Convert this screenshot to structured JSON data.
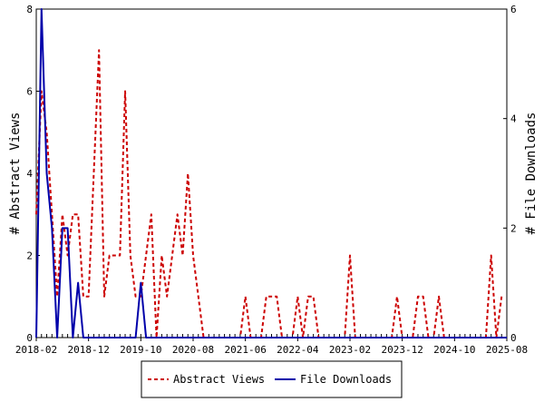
{
  "chart_data": {
    "type": "line",
    "xlabel": "",
    "ylabel_left": "# Abstract Views",
    "ylabel_right": "# File Downloads",
    "ylim_left": [
      0,
      8
    ],
    "ylim_right": [
      0,
      6
    ],
    "yticks_left": [
      "0",
      "2",
      "4",
      "6",
      "8"
    ],
    "yticks_right": [
      "0",
      "2",
      "4",
      "6"
    ],
    "xlim": [
      "2018-02",
      "2025-08"
    ],
    "xticks": [
      "2018-02",
      "2018-12",
      "2019-10",
      "2020-08",
      "2021-06",
      "2022-04",
      "2023-02",
      "2023-12",
      "2024-10",
      "2025-08"
    ],
    "legend_position": "bottom-center",
    "series": [
      {
        "name": "Abstract Views",
        "axis": "left",
        "color": "#cc0000",
        "dash": "dashed",
        "points": [
          [
            "2018-02",
            3.0
          ],
          [
            "2018-03",
            6.0
          ],
          [
            "2018-04",
            5.0
          ],
          [
            "2018-05",
            3.0
          ],
          [
            "2018-06",
            1.0
          ],
          [
            "2018-07",
            3.0
          ],
          [
            "2018-08",
            2.0
          ],
          [
            "2018-09",
            3.0
          ],
          [
            "2018-10",
            3.0
          ],
          [
            "2018-11",
            1.0
          ],
          [
            "2018-12",
            1.0
          ],
          [
            "2019-01",
            4.0
          ],
          [
            "2019-02",
            7.0
          ],
          [
            "2019-03",
            1.0
          ],
          [
            "2019-04",
            2.0
          ],
          [
            "2019-05",
            2.0
          ],
          [
            "2019-06",
            2.0
          ],
          [
            "2019-07",
            6.0
          ],
          [
            "2019-08",
            2.0
          ],
          [
            "2019-09",
            1.0
          ],
          [
            "2019-10",
            1.0
          ],
          [
            "2019-11",
            2.0
          ],
          [
            "2019-12",
            3.0
          ],
          [
            "2020-01",
            0.0
          ],
          [
            "2020-02",
            2.0
          ],
          [
            "2020-03",
            1.0
          ],
          [
            "2020-04",
            2.0
          ],
          [
            "2020-05",
            3.0
          ],
          [
            "2020-06",
            2.0
          ],
          [
            "2020-07",
            4.0
          ],
          [
            "2020-08",
            2.0
          ],
          [
            "2020-09",
            1.0
          ],
          [
            "2020-10",
            0.0
          ],
          [
            "2021-05",
            0.0
          ],
          [
            "2021-06",
            1.0
          ],
          [
            "2021-07",
            0.0
          ],
          [
            "2021-09",
            0.0
          ],
          [
            "2021-10",
            1.0
          ],
          [
            "2021-12",
            1.0
          ],
          [
            "2022-01",
            0.0
          ],
          [
            "2022-03",
            0.0
          ],
          [
            "2022-04",
            1.0
          ],
          [
            "2022-05",
            0.0
          ],
          [
            "2022-06",
            1.0
          ],
          [
            "2022-07",
            1.0
          ],
          [
            "2022-08",
            0.0
          ],
          [
            "2023-01",
            0.0
          ],
          [
            "2023-02",
            2.0
          ],
          [
            "2023-03",
            0.0
          ],
          [
            "2023-10",
            0.0
          ],
          [
            "2023-11",
            1.0
          ],
          [
            "2023-12",
            0.0
          ],
          [
            "2024-02",
            0.0
          ],
          [
            "2024-03",
            1.0
          ],
          [
            "2024-04",
            1.0
          ],
          [
            "2024-05",
            0.0
          ],
          [
            "2024-06",
            0.0
          ],
          [
            "2024-07",
            1.0
          ],
          [
            "2024-08",
            0.0
          ],
          [
            "2025-04",
            0.0
          ],
          [
            "2025-05",
            2.0
          ],
          [
            "2025-06",
            0.0
          ],
          [
            "2025-07",
            1.0
          ]
        ]
      },
      {
        "name": "File Downloads",
        "axis": "right",
        "color": "#0000aa",
        "dash": "solid",
        "points": [
          [
            "2018-02",
            0.0
          ],
          [
            "2018-03",
            6.0
          ],
          [
            "2018-04",
            3.0
          ],
          [
            "2018-05",
            2.0
          ],
          [
            "2018-06",
            0.0
          ],
          [
            "2018-07",
            2.0
          ],
          [
            "2018-08",
            2.0
          ],
          [
            "2018-09",
            0.0
          ],
          [
            "2018-10",
            1.0
          ],
          [
            "2018-11",
            0.0
          ],
          [
            "2019-09",
            0.0
          ],
          [
            "2019-10",
            1.0
          ],
          [
            "2019-11",
            0.0
          ],
          [
            "2025-08",
            0.0
          ]
        ]
      }
    ]
  }
}
